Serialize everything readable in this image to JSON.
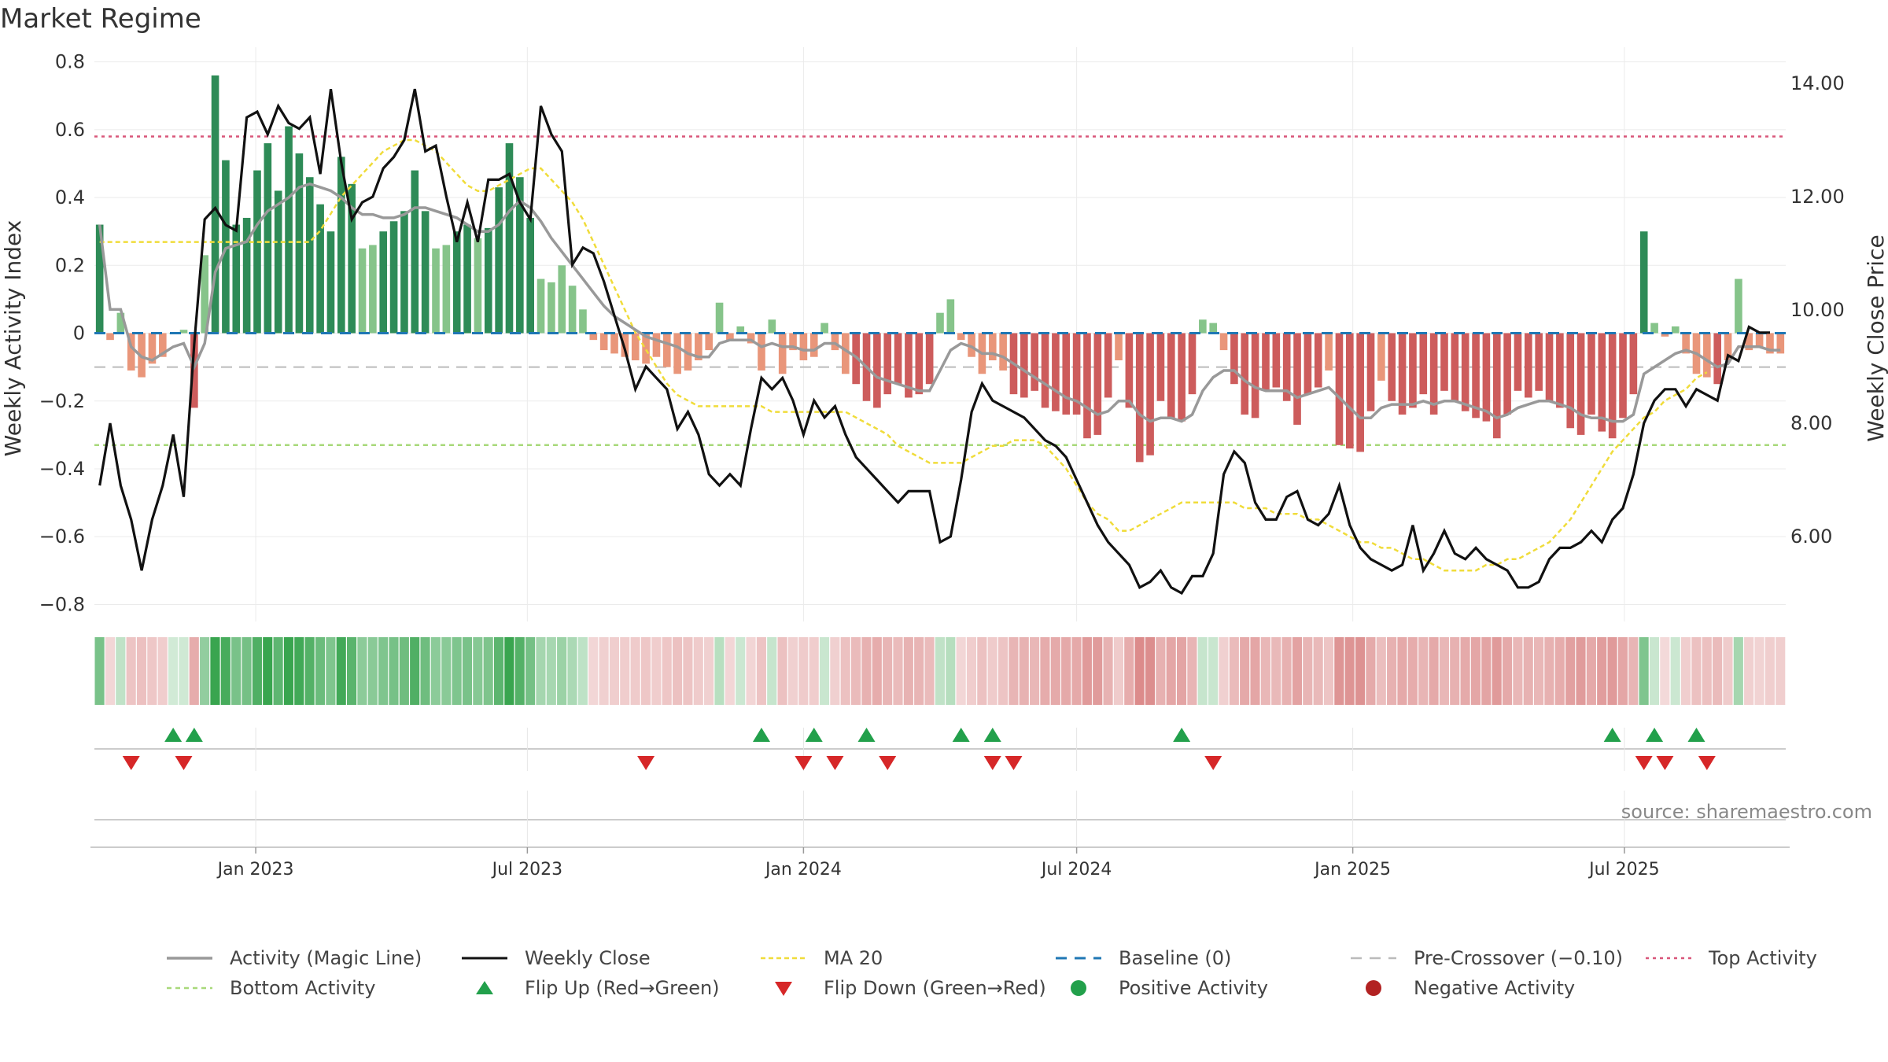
{
  "page_title": "Market Regime",
  "source_note": "source: sharemaestro.com",
  "colors": {
    "green_dark": "#2e8b57",
    "green_light": "#86c48a",
    "red_dark": "#cd5c5c",
    "red_light": "#e9967a",
    "magic_line": "#999999",
    "close_line": "#111111",
    "ma20": "#f0dc3a",
    "baseline": "#1f77b4",
    "pre_crossover": "#bbbbbb",
    "top_activity": "#d9577a",
    "bottom_activity": "#a8d97a",
    "flip_up": "#22a04b",
    "flip_down": "#d62728",
    "positive": "#22a04b",
    "negative": "#b22222"
  },
  "chart_data": {
    "type": "bar+line",
    "title": "Market Regime",
    "ylabel_left": "Weekly Activity Index",
    "ylabel_right": "Weekly Close Price",
    "ylim_left": [
      -0.85,
      0.82
    ],
    "ylim_right": [
      4.5,
      14.5
    ],
    "yticks_left": [
      0.8,
      0.6,
      0.4,
      0.2,
      0,
      -0.2,
      -0.4,
      -0.6,
      -0.8
    ],
    "ytick_labels_left": [
      "0.8",
      "0.6",
      "0.4",
      "0.2",
      "0",
      "−0.2",
      "−0.4",
      "−0.6",
      "−0.8"
    ],
    "yticks_right": [
      14,
      12,
      10,
      8,
      6
    ],
    "ytick_labels_right": [
      "14.00",
      "12.00",
      "10.00",
      "8.00",
      "6.00"
    ],
    "x_start": "2022-09-19",
    "interval_days": 7,
    "xticks": [
      {
        "date": "2023-01-01",
        "label": "Jan 2023"
      },
      {
        "date": "2023-07-01",
        "label": "Jul 2023"
      },
      {
        "date": "2024-01-01",
        "label": "Jan 2024"
      },
      {
        "date": "2024-07-01",
        "label": "Jul 2024"
      },
      {
        "date": "2025-01-01",
        "label": "Jan 2025"
      },
      {
        "date": "2025-07-01",
        "label": "Jul 2025"
      }
    ],
    "top_activity": 0.58,
    "bottom_activity": -0.33,
    "pre_crossover": -0.1,
    "baseline": 0,
    "activity": [
      0.32,
      -0.02,
      0.06,
      -0.11,
      -0.13,
      -0.09,
      -0.07,
      0,
      0.01,
      -0.22,
      0.23,
      0.76,
      0.51,
      0.32,
      0.34,
      0.48,
      0.56,
      0.42,
      0.61,
      0.53,
      0.46,
      0.38,
      0.3,
      0.52,
      0.44,
      0.25,
      0.26,
      0.3,
      0.33,
      0.36,
      0.48,
      0.36,
      0.25,
      0.26,
      0.3,
      0.32,
      0.28,
      0.31,
      0.43,
      0.56,
      0.46,
      0.34,
      0.16,
      0.15,
      0.2,
      0.14,
      0.07,
      -0.02,
      -0.05,
      -0.06,
      -0.07,
      -0.08,
      -0.09,
      -0.07,
      -0.1,
      -0.12,
      -0.11,
      -0.08,
      -0.05,
      0.09,
      -0.02,
      0.02,
      -0.03,
      -0.11,
      0.04,
      -0.12,
      -0.05,
      -0.08,
      -0.07,
      0.03,
      -0.05,
      -0.12,
      -0.15,
      -0.2,
      -0.22,
      -0.18,
      -0.15,
      -0.19,
      -0.18,
      -0.15,
      0.06,
      0.1,
      -0.02,
      -0.07,
      -0.12,
      -0.08,
      -0.11,
      -0.18,
      -0.19,
      -0.17,
      -0.22,
      -0.23,
      -0.24,
      -0.24,
      -0.31,
      -0.3,
      -0.19,
      -0.08,
      -0.22,
      -0.38,
      -0.36,
      -0.2,
      -0.25,
      -0.26,
      -0.18,
      0.04,
      0.03,
      -0.05,
      -0.15,
      -0.24,
      -0.25,
      -0.17,
      -0.16,
      -0.2,
      -0.27,
      -0.18,
      -0.16,
      -0.11,
      -0.33,
      -0.34,
      -0.35,
      -0.23,
      -0.14,
      -0.2,
      -0.24,
      -0.22,
      -0.18,
      -0.24,
      -0.17,
      -0.2,
      -0.23,
      -0.25,
      -0.26,
      -0.31,
      -0.24,
      -0.17,
      -0.19,
      -0.17,
      -0.2,
      -0.22,
      -0.28,
      -0.3,
      -0.24,
      -0.29,
      -0.31,
      -0.25,
      -0.18,
      0.3,
      0.03,
      -0.01,
      0.02,
      -0.06,
      -0.12,
      -0.13,
      -0.15,
      -0.08,
      0.16,
      -0.05,
      -0.04,
      -0.06,
      -0.06
    ],
    "magic_line": [
      0.32,
      0.07,
      0.07,
      -0.04,
      -0.07,
      -0.08,
      -0.06,
      -0.04,
      -0.03,
      -0.1,
      -0.03,
      0.18,
      0.25,
      0.26,
      0.27,
      0.32,
      0.36,
      0.38,
      0.4,
      0.43,
      0.44,
      0.43,
      0.42,
      0.4,
      0.37,
      0.35,
      0.35,
      0.34,
      0.34,
      0.35,
      0.37,
      0.37,
      0.36,
      0.35,
      0.34,
      0.32,
      0.3,
      0.3,
      0.32,
      0.36,
      0.39,
      0.37,
      0.33,
      0.28,
      0.24,
      0.2,
      0.16,
      0.12,
      0.08,
      0.05,
      0.03,
      0.01,
      -0.01,
      -0.02,
      -0.03,
      -0.04,
      -0.06,
      -0.07,
      -0.07,
      -0.03,
      -0.02,
      -0.02,
      -0.02,
      -0.04,
      -0.03,
      -0.04,
      -0.04,
      -0.05,
      -0.05,
      -0.03,
      -0.03,
      -0.05,
      -0.07,
      -0.1,
      -0.13,
      -0.14,
      -0.15,
      -0.16,
      -0.17,
      -0.17,
      -0.11,
      -0.05,
      -0.03,
      -0.04,
      -0.06,
      -0.06,
      -0.07,
      -0.09,
      -0.11,
      -0.13,
      -0.15,
      -0.17,
      -0.19,
      -0.2,
      -0.22,
      -0.24,
      -0.23,
      -0.2,
      -0.2,
      -0.24,
      -0.26,
      -0.25,
      -0.25,
      -0.26,
      -0.24,
      -0.17,
      -0.13,
      -0.11,
      -0.11,
      -0.14,
      -0.16,
      -0.17,
      -0.17,
      -0.17,
      -0.19,
      -0.18,
      -0.17,
      -0.16,
      -0.19,
      -0.22,
      -0.25,
      -0.25,
      -0.22,
      -0.21,
      -0.21,
      -0.21,
      -0.2,
      -0.21,
      -0.2,
      -0.2,
      -0.21,
      -0.22,
      -0.23,
      -0.25,
      -0.24,
      -0.22,
      -0.21,
      -0.2,
      -0.2,
      -0.21,
      -0.22,
      -0.24,
      -0.25,
      -0.25,
      -0.26,
      -0.26,
      -0.24,
      -0.12,
      -0.1,
      -0.08,
      -0.06,
      -0.05,
      -0.06,
      -0.08,
      -0.1,
      -0.09,
      -0.04,
      -0.04,
      -0.04,
      -0.05,
      -0.05
    ],
    "weekly_close": [
      6.9,
      8.0,
      6.9,
      6.3,
      5.4,
      6.3,
      6.9,
      7.8,
      6.7,
      9.4,
      11.6,
      11.8,
      11.5,
      11.4,
      13.4,
      13.5,
      13.1,
      13.6,
      13.3,
      13.2,
      13.4,
      12.4,
      13.9,
      12.6,
      11.6,
      11.9,
      12.0,
      12.5,
      12.7,
      13.0,
      13.9,
      12.8,
      12.9,
      12.0,
      11.2,
      11.9,
      11.2,
      12.3,
      12.3,
      12.4,
      11.9,
      11.6,
      13.6,
      13.1,
      12.8,
      10.8,
      11.1,
      11.0,
      10.5,
      9.9,
      9.3,
      8.6,
      9.0,
      8.8,
      8.6,
      7.9,
      8.2,
      7.8,
      7.1,
      6.9,
      7.1,
      6.9,
      7.9,
      8.8,
      8.6,
      8.8,
      8.4,
      7.8,
      8.4,
      8.1,
      8.3,
      7.8,
      7.4,
      7.2,
      7.0,
      6.8,
      6.6,
      6.8,
      6.8,
      6.8,
      5.9,
      6.0,
      7.0,
      8.2,
      8.7,
      8.4,
      8.3,
      8.2,
      8.1,
      7.9,
      7.7,
      7.6,
      7.4,
      7.0,
      6.6,
      6.2,
      5.9,
      5.7,
      5.5,
      5.1,
      5.2,
      5.4,
      5.1,
      5.0,
      5.3,
      5.3,
      5.7,
      7.1,
      7.5,
      7.3,
      6.6,
      6.3,
      6.3,
      6.7,
      6.8,
      6.3,
      6.2,
      6.4,
      6.9,
      6.2,
      5.8,
      5.6,
      5.5,
      5.4,
      5.5,
      6.2,
      5.4,
      5.7,
      6.1,
      5.7,
      5.6,
      5.8,
      5.6,
      5.5,
      5.4,
      5.1,
      5.1,
      5.2,
      5.6,
      5.8,
      5.8,
      5.9,
      6.1,
      5.9,
      6.3,
      6.5,
      7.1,
      8.0,
      8.4,
      8.6,
      8.6,
      8.3,
      8.6,
      8.5,
      8.4,
      9.2,
      9.1,
      9.7,
      9.6,
      9.6
    ],
    "ma20": [
      11.2,
      11.2,
      11.2,
      11.2,
      11.2,
      11.2,
      11.2,
      11.2,
      11.2,
      11.2,
      11.2,
      11.2,
      11.2,
      11.2,
      11.2,
      11.2,
      11.2,
      11.2,
      11.2,
      11.2,
      11.2,
      11.4,
      11.7,
      12.0,
      12.2,
      12.4,
      12.6,
      12.8,
      12.9,
      13.0,
      13.0,
      12.9,
      12.8,
      12.6,
      12.4,
      12.2,
      12.1,
      12.1,
      12.2,
      12.3,
      12.4,
      12.5,
      12.5,
      12.3,
      12.1,
      11.9,
      11.6,
      11.2,
      10.8,
      10.4,
      10.0,
      9.6,
      9.3,
      9.0,
      8.7,
      8.5,
      8.4,
      8.3,
      8.3,
      8.3,
      8.3,
      8.3,
      8.3,
      8.3,
      8.2,
      8.2,
      8.2,
      8.2,
      8.2,
      8.2,
      8.2,
      8.2,
      8.1,
      8.0,
      7.9,
      7.8,
      7.6,
      7.5,
      7.4,
      7.3,
      7.3,
      7.3,
      7.3,
      7.4,
      7.5,
      7.6,
      7.6,
      7.7,
      7.7,
      7.7,
      7.6,
      7.4,
      7.2,
      6.9,
      6.6,
      6.4,
      6.3,
      6.1,
      6.1,
      6.2,
      6.3,
      6.4,
      6.5,
      6.6,
      6.6,
      6.6,
      6.6,
      6.6,
      6.6,
      6.5,
      6.5,
      6.5,
      6.4,
      6.4,
      6.4,
      6.3,
      6.3,
      6.2,
      6.1,
      6.0,
      5.9,
      5.9,
      5.8,
      5.8,
      5.7,
      5.6,
      5.6,
      5.5,
      5.4,
      5.4,
      5.4,
      5.4,
      5.5,
      5.5,
      5.6,
      5.6,
      5.7,
      5.8,
      5.9,
      6.1,
      6.3,
      6.6,
      6.9,
      7.2,
      7.5,
      7.7,
      7.9,
      8.1,
      8.2,
      8.4,
      8.5,
      8.6,
      8.8,
      8.9
    ],
    "flip_up_weeks": [
      7,
      9,
      63,
      68,
      73,
      82,
      85,
      103,
      144,
      148,
      152
    ],
    "flip_down_weeks": [
      3,
      8,
      52,
      67,
      70,
      75,
      85,
      87,
      106,
      147,
      149,
      153
    ],
    "legend": [
      {
        "key": "magic",
        "label": "Activity (Magic Line)"
      },
      {
        "key": "close",
        "label": "Weekly Close"
      },
      {
        "key": "ma20",
        "label": "MA 20"
      },
      {
        "key": "baseline",
        "label": "Baseline (0)"
      },
      {
        "key": "precross",
        "label": "Pre-Crossover (−0.10)"
      },
      {
        "key": "top",
        "label": "Top Activity"
      },
      {
        "key": "bottom",
        "label": "Bottom Activity"
      },
      {
        "key": "flipup",
        "label": "Flip Up (Red→Green)"
      },
      {
        "key": "flipdown",
        "label": "Flip Down (Green→Red)"
      },
      {
        "key": "pos",
        "label": "Positive Activity"
      },
      {
        "key": "neg",
        "label": "Negative Activity"
      }
    ]
  }
}
